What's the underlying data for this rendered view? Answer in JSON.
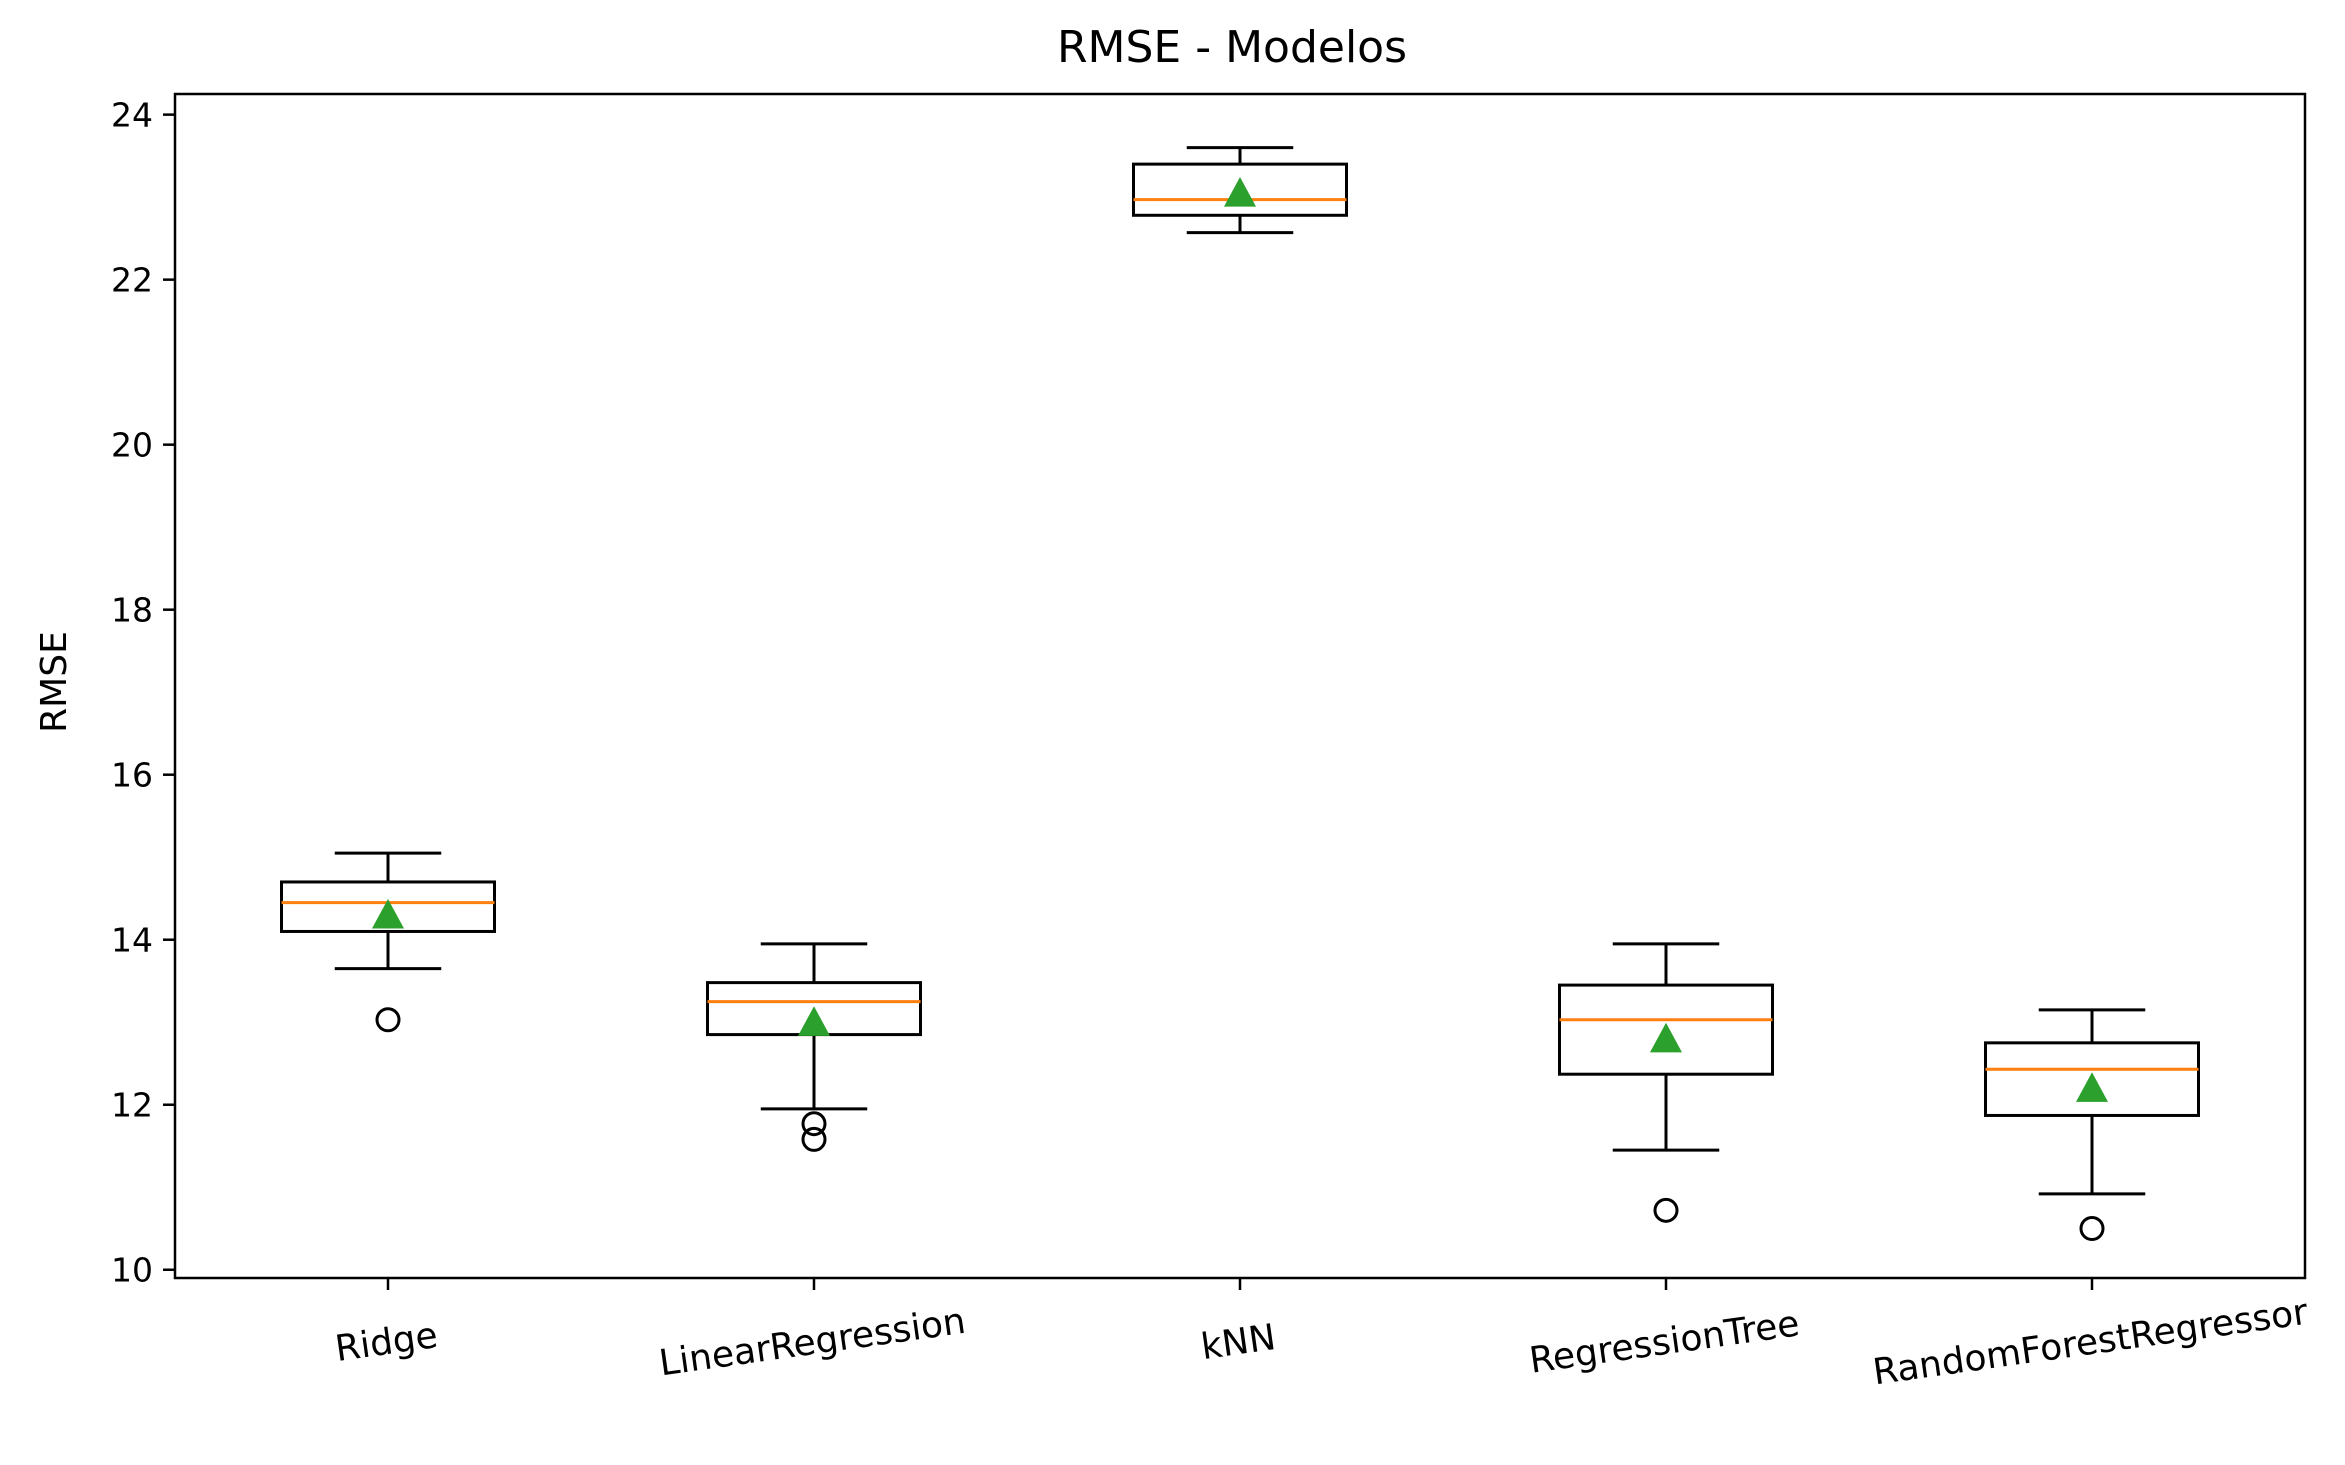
{
  "chart_data": {
    "type": "box",
    "title": "RMSE - Modelos",
    "xlabel": "",
    "ylabel": "RMSE",
    "ylim": [
      9.9,
      24.25
    ],
    "yticks": [
      10,
      12,
      14,
      16,
      18,
      20,
      22,
      24
    ],
    "grid": false,
    "categories": [
      "Ridge",
      "LinearRegression",
      "kNN",
      "RegressionTree",
      "RandomForestRegressor"
    ],
    "boxes": [
      {
        "name": "Ridge",
        "whisker_low": 13.65,
        "q1": 14.1,
        "median": 14.45,
        "q3": 14.7,
        "whisker_high": 15.05,
        "mean": 14.3,
        "outliers": [
          13.03
        ]
      },
      {
        "name": "LinearRegression",
        "whisker_low": 11.95,
        "q1": 12.85,
        "median": 13.25,
        "q3": 13.48,
        "whisker_high": 13.95,
        "mean": 13.0,
        "outliers": [
          11.77,
          11.58
        ]
      },
      {
        "name": "kNN",
        "whisker_low": 22.57,
        "q1": 22.78,
        "median": 22.97,
        "q3": 23.4,
        "whisker_high": 23.6,
        "mean": 23.05,
        "outliers": []
      },
      {
        "name": "RegressionTree",
        "whisker_low": 11.45,
        "q1": 12.37,
        "median": 13.03,
        "q3": 13.45,
        "whisker_high": 13.95,
        "mean": 12.8,
        "outliers": [
          10.72
        ]
      },
      {
        "name": "RandomForestRegressor",
        "whisker_low": 10.92,
        "q1": 11.87,
        "median": 12.43,
        "q3": 12.75,
        "whisker_high": 13.15,
        "mean": 12.2,
        "outliers": [
          10.5
        ]
      }
    ],
    "colors": {
      "box": "#000000",
      "median": "#ff7f0e",
      "mean": "#2ca02c",
      "outlier": "#000000"
    }
  }
}
